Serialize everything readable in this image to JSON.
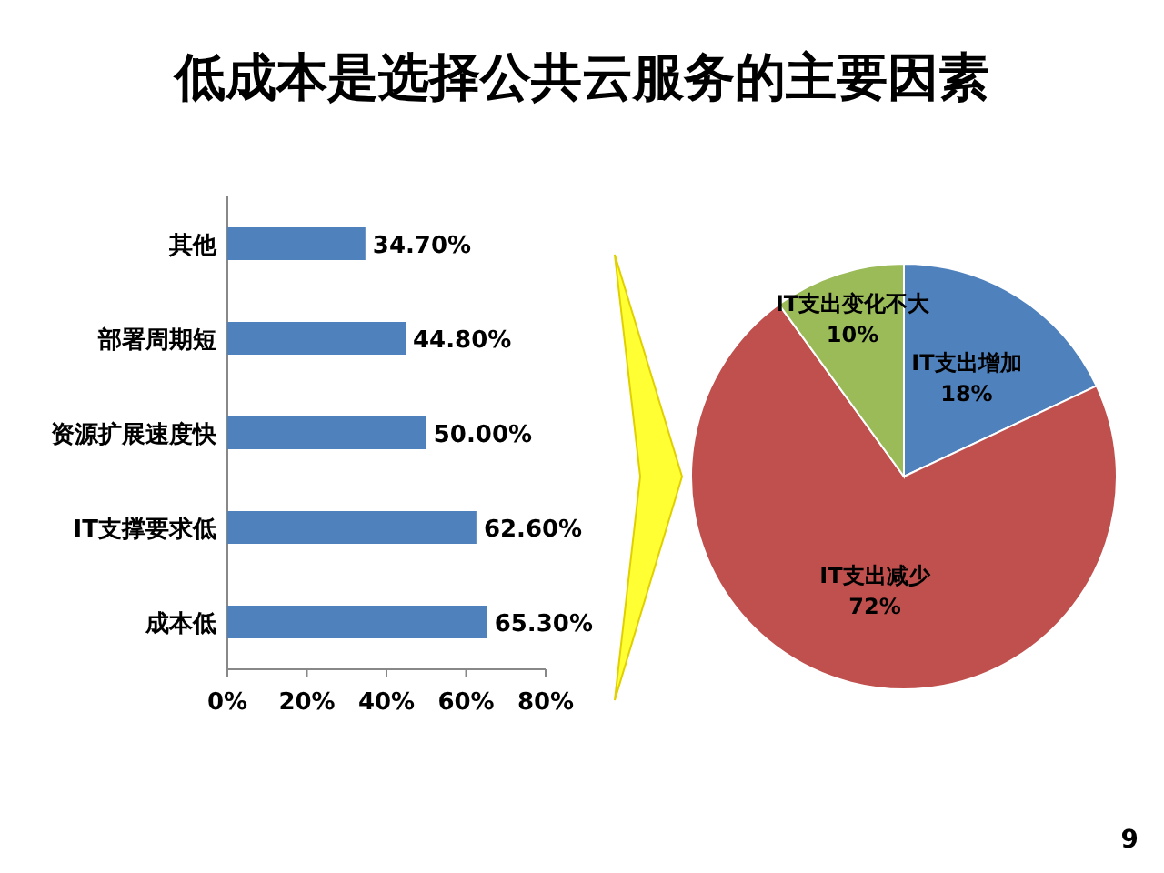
{
  "chart_data": [
    {
      "type": "bar",
      "orientation": "horizontal",
      "title": "低成本是选择公共云服务的主要因素",
      "categories": [
        "其他",
        "部署周期短",
        "资源扩展速度快",
        "IT支撑要求低",
        "成本低"
      ],
      "values": [
        34.7,
        44.8,
        50,
        62.6,
        65.3
      ],
      "value_labels": [
        "34.70%",
        "44.80%",
        "50.00%",
        "62.60%",
        "65.30%"
      ],
      "color": "#4f81bd",
      "xlim": [
        0,
        80
      ],
      "xticks": [
        {
          "value": 0,
          "label": "0%"
        },
        {
          "value": 20,
          "label": "20%"
        },
        {
          "value": 40,
          "label": "40%"
        },
        {
          "value": 60,
          "label": "60%"
        },
        {
          "value": 80,
          "label": "80%"
        }
      ]
    },
    {
      "type": "pie",
      "categories": [
        "IT支出增加",
        "IT支出减少",
        "IT支出变化不大"
      ],
      "values": [
        18,
        72,
        10
      ],
      "value_labels": [
        "18%",
        "72%",
        "10%"
      ],
      "colors": [
        "#4f81bd",
        "#c0504d",
        "#9bbb59"
      ],
      "annotations": [
        "9"
      ]
    }
  ]
}
